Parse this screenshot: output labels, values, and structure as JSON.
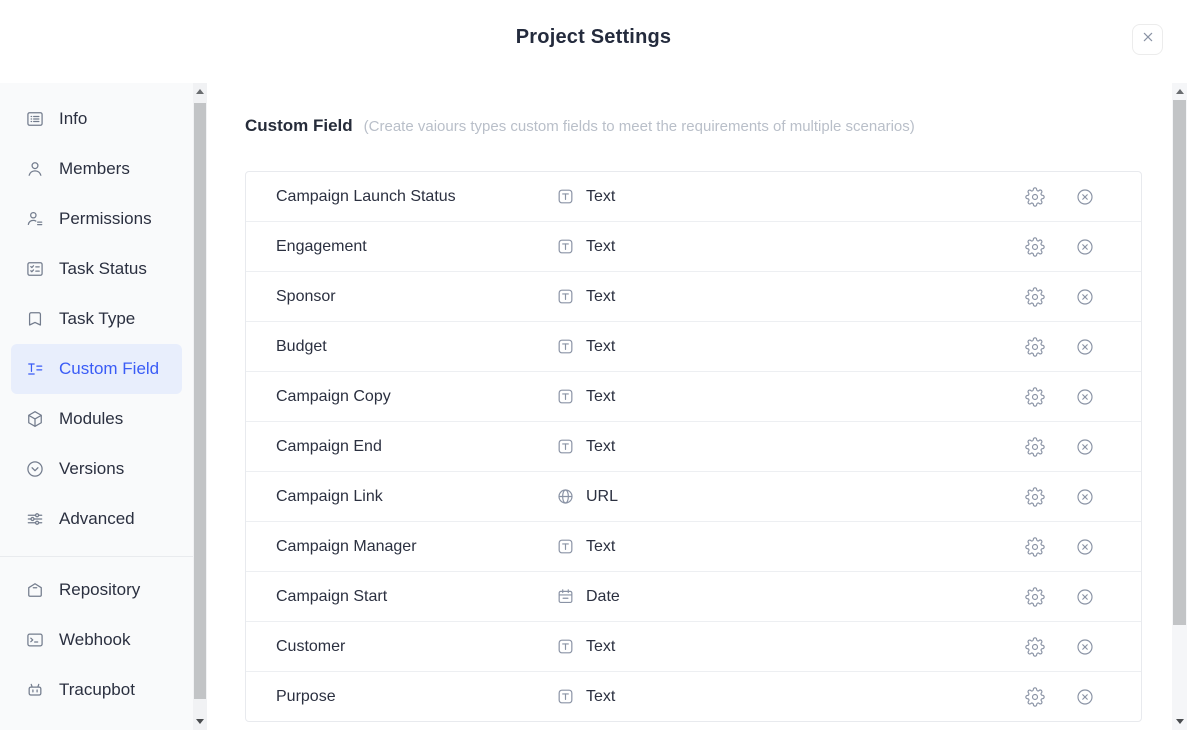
{
  "modal": {
    "title": "Project Settings"
  },
  "sidebar": {
    "sections": [
      {
        "items": [
          {
            "label": "Info",
            "icon": "info-icon",
            "active": false
          },
          {
            "label": "Members",
            "icon": "members-icon",
            "active": false
          },
          {
            "label": "Permissions",
            "icon": "permissions-icon",
            "active": false
          },
          {
            "label": "Task Status",
            "icon": "task-status-icon",
            "active": false
          },
          {
            "label": "Task Type",
            "icon": "task-type-icon",
            "active": false
          },
          {
            "label": "Custom Field",
            "icon": "custom-field-icon",
            "active": true
          },
          {
            "label": "Modules",
            "icon": "modules-icon",
            "active": false
          },
          {
            "label": "Versions",
            "icon": "versions-icon",
            "active": false
          },
          {
            "label": "Advanced",
            "icon": "advanced-icon",
            "active": false
          }
        ]
      },
      {
        "items": [
          {
            "label": "Repository",
            "icon": "repository-icon",
            "active": false
          },
          {
            "label": "Webhook",
            "icon": "webhook-icon",
            "active": false
          },
          {
            "label": "Tracupbot",
            "icon": "tracupbot-icon",
            "active": false
          }
        ]
      }
    ]
  },
  "main": {
    "heading": "Custom Field",
    "description": "(Create vaiours types custom fields to meet the requirements of multiple scenarios)",
    "fields": [
      {
        "name": "Campaign Launch Status",
        "type": "Text",
        "type_icon": "text-type-icon"
      },
      {
        "name": "Engagement",
        "type": "Text",
        "type_icon": "text-type-icon"
      },
      {
        "name": "Sponsor",
        "type": "Text",
        "type_icon": "text-type-icon"
      },
      {
        "name": "Budget",
        "type": "Text",
        "type_icon": "text-type-icon"
      },
      {
        "name": "Campaign Copy",
        "type": "Text",
        "type_icon": "text-type-icon"
      },
      {
        "name": "Campaign End",
        "type": "Text",
        "type_icon": "text-type-icon"
      },
      {
        "name": "Campaign Link",
        "type": "URL",
        "type_icon": "url-type-icon"
      },
      {
        "name": "Campaign Manager",
        "type": "Text",
        "type_icon": "text-type-icon"
      },
      {
        "name": "Campaign Start",
        "type": "Date",
        "type_icon": "date-type-icon"
      },
      {
        "name": "Customer",
        "type": "Text",
        "type_icon": "text-type-icon"
      },
      {
        "name": "Purpose",
        "type": "Text",
        "type_icon": "text-type-icon"
      }
    ],
    "row_action_icons": [
      "settings-icon",
      "delete-icon"
    ]
  },
  "colors": {
    "accent_blue": "#3a5cf6",
    "active_item_bg": "#e8eefc",
    "icon_gray": "#8a93a5",
    "text_dark": "#2b3040",
    "muted_gray": "#b9bfc9",
    "border_gray": "#e8eaee",
    "sidebar_bg": "#f9fafb"
  }
}
